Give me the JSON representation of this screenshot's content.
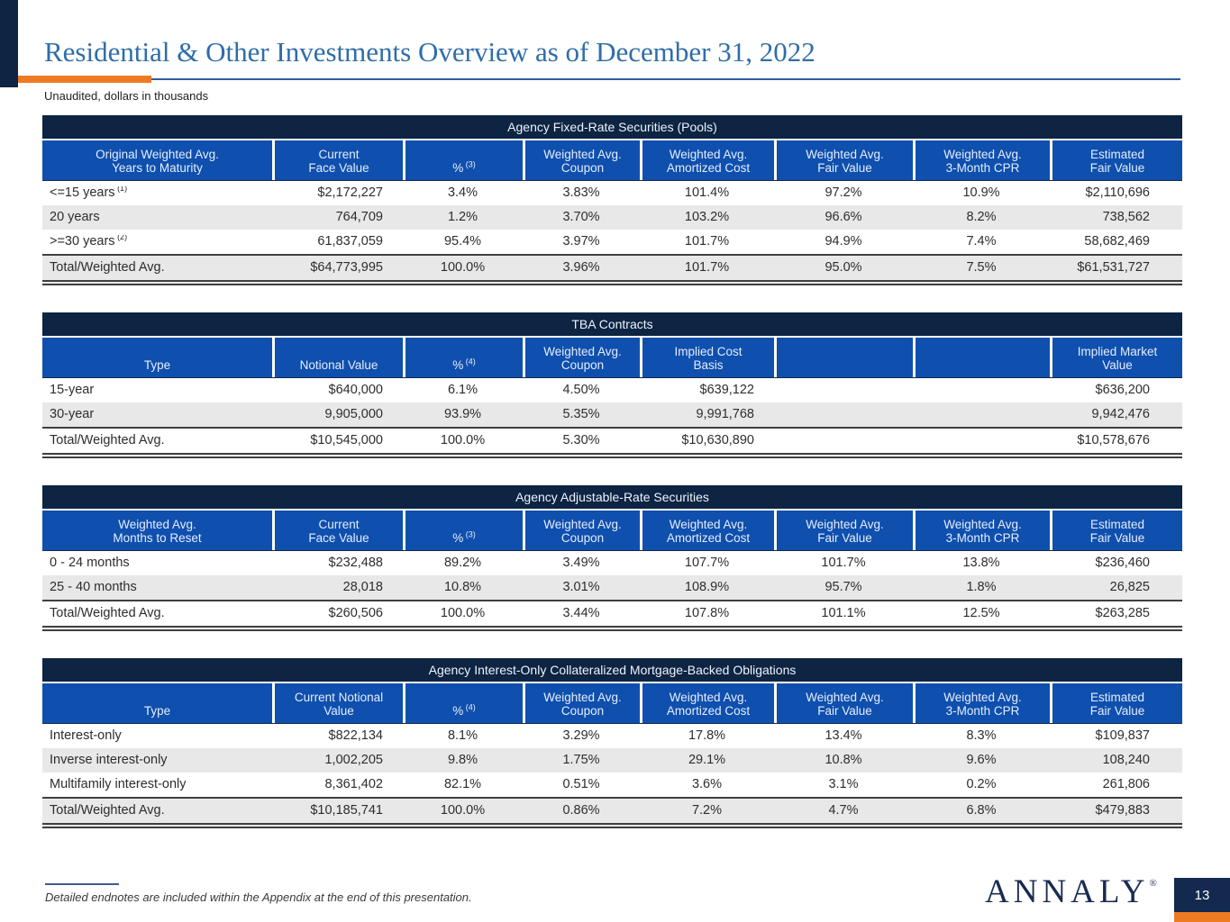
{
  "slide": {
    "title": "Residential & Other Investments Overview as of December 31, 2022",
    "subtitle": "Unaudited, dollars in thousands",
    "endnote": "Detailed endnotes are included within the Appendix at the end of this presentation.",
    "logo_text": "ANNALY",
    "logo_reg": "®",
    "page_number": "13"
  },
  "colors": {
    "navy": "#0d2443",
    "header_blue": "#0f4fae",
    "title_blue": "#2f6da8",
    "orange": "#ee7b22",
    "alt_row": "#e8e8e8",
    "text": "#2d2d2d"
  },
  "tables": [
    {
      "id": "agency-fixed-rate",
      "title": "Agency Fixed-Rate Securities (Pools)",
      "columns": [
        {
          "lines": [
            "Original Weighted Avg.",
            "Years to Maturity"
          ]
        },
        {
          "lines": [
            "Current",
            "Face Value"
          ]
        },
        {
          "lines": [
            "%"
          ],
          "sup": "(3)"
        },
        {
          "lines": [
            "Weighted Avg.",
            "Coupon"
          ]
        },
        {
          "lines": [
            "Weighted Avg.",
            "Amortized Cost"
          ]
        },
        {
          "lines": [
            "Weighted Avg.",
            "Fair Value"
          ]
        },
        {
          "lines": [
            "Weighted Avg.",
            "3-Month CPR"
          ]
        },
        {
          "lines": [
            "Estimated",
            "Fair Value"
          ]
        }
      ],
      "rows": [
        {
          "label": "<=15 years",
          "label_sup": "(1)",
          "values": [
            "$2,172,227",
            "3.4%",
            "3.83%",
            "101.4%",
            "97.2%",
            "10.9%",
            "$2,110,696"
          ]
        },
        {
          "label": "20 years",
          "values": [
            "764,709",
            "1.2%",
            "3.70%",
            "103.2%",
            "96.6%",
            "8.2%",
            "738,562"
          ]
        },
        {
          "label": ">=30 years",
          "label_sup": "(2)",
          "values": [
            "61,837,059",
            "95.4%",
            "3.97%",
            "101.7%",
            "94.9%",
            "7.4%",
            "58,682,469"
          ]
        }
      ],
      "total": {
        "label": "Total/Weighted Avg.",
        "values": [
          "$64,773,995",
          "100.0%",
          "3.96%",
          "101.7%",
          "95.0%",
          "7.5%",
          "$61,531,727"
        ]
      }
    },
    {
      "id": "tba-contracts",
      "title": "TBA Contracts",
      "columns": [
        {
          "lines": [
            "Type"
          ]
        },
        {
          "lines": [
            "Notional Value"
          ]
        },
        {
          "lines": [
            "%"
          ],
          "sup": "(4)"
        },
        {
          "lines": [
            "Weighted Avg.",
            "Coupon"
          ]
        },
        {
          "lines": [
            "Implied Cost",
            "Basis"
          ]
        },
        {
          "lines": []
        },
        {
          "lines": []
        },
        {
          "lines": [
            "Implied Market",
            "Value"
          ]
        }
      ],
      "rows": [
        {
          "label": "15-year",
          "values": [
            "$640,000",
            "6.1%",
            "4.50%",
            "$639,122",
            "",
            "",
            "$636,200"
          ]
        },
        {
          "label": "30-year",
          "values": [
            "9,905,000",
            "93.9%",
            "5.35%",
            "9,991,768",
            "",
            "",
            "9,942,476"
          ]
        }
      ],
      "total": {
        "label": "Total/Weighted Avg.",
        "values": [
          "$10,545,000",
          "100.0%",
          "5.30%",
          "$10,630,890",
          "",
          "",
          "$10,578,676"
        ]
      }
    },
    {
      "id": "agency-adjustable-rate",
      "title": "Agency Adjustable-Rate Securities",
      "columns": [
        {
          "lines": [
            "Weighted Avg.",
            "Months to Reset"
          ]
        },
        {
          "lines": [
            "Current",
            "Face Value"
          ]
        },
        {
          "lines": [
            "%"
          ],
          "sup": "(3)"
        },
        {
          "lines": [
            "Weighted Avg.",
            "Coupon"
          ]
        },
        {
          "lines": [
            "Weighted Avg.",
            "Amortized Cost"
          ]
        },
        {
          "lines": [
            "Weighted Avg.",
            "Fair Value"
          ]
        },
        {
          "lines": [
            "Weighted Avg.",
            "3-Month CPR"
          ]
        },
        {
          "lines": [
            "Estimated",
            "Fair Value"
          ]
        }
      ],
      "rows": [
        {
          "label": "0 - 24 months",
          "values": [
            "$232,488",
            "89.2%",
            "3.49%",
            "107.7%",
            "101.7%",
            "13.8%",
            "$236,460"
          ]
        },
        {
          "label": "25 - 40 months",
          "values": [
            "28,018",
            "10.8%",
            "3.01%",
            "108.9%",
            "95.7%",
            "1.8%",
            "26,825"
          ]
        }
      ],
      "total": {
        "label": "Total/Weighted Avg.",
        "values": [
          "$260,506",
          "100.0%",
          "3.44%",
          "107.8%",
          "101.1%",
          "12.5%",
          "$263,285"
        ]
      }
    },
    {
      "id": "agency-interest-only",
      "title": "Agency Interest-Only Collateralized Mortgage-Backed Obligations",
      "columns": [
        {
          "lines": [
            "Type"
          ]
        },
        {
          "lines": [
            "Current Notional",
            "Value"
          ]
        },
        {
          "lines": [
            "%"
          ],
          "sup": "(4)"
        },
        {
          "lines": [
            "Weighted Avg.",
            "Coupon"
          ]
        },
        {
          "lines": [
            "Weighted Avg.",
            "Amortized Cost"
          ]
        },
        {
          "lines": [
            "Weighted Avg.",
            "Fair Value"
          ]
        },
        {
          "lines": [
            "Weighted Avg.",
            "3-Month CPR"
          ]
        },
        {
          "lines": [
            "Estimated",
            "Fair Value"
          ]
        }
      ],
      "rows": [
        {
          "label": "Interest-only",
          "values": [
            "$822,134",
            "8.1%",
            "3.29%",
            "17.8%",
            "13.4%",
            "8.3%",
            "$109,837"
          ]
        },
        {
          "label": "Inverse interest-only",
          "values": [
            "1,002,205",
            "9.8%",
            "1.75%",
            "29.1%",
            "10.8%",
            "9.6%",
            "108,240"
          ]
        },
        {
          "label": "Multifamily interest-only",
          "values": [
            "8,361,402",
            "82.1%",
            "0.51%",
            "3.6%",
            "3.1%",
            "0.2%",
            "261,806"
          ]
        }
      ],
      "total": {
        "label": "Total/Weighted Avg.",
        "values": [
          "$10,185,741",
          "100.0%",
          "0.86%",
          "7.2%",
          "4.7%",
          "6.8%",
          "$479,883"
        ]
      }
    }
  ]
}
